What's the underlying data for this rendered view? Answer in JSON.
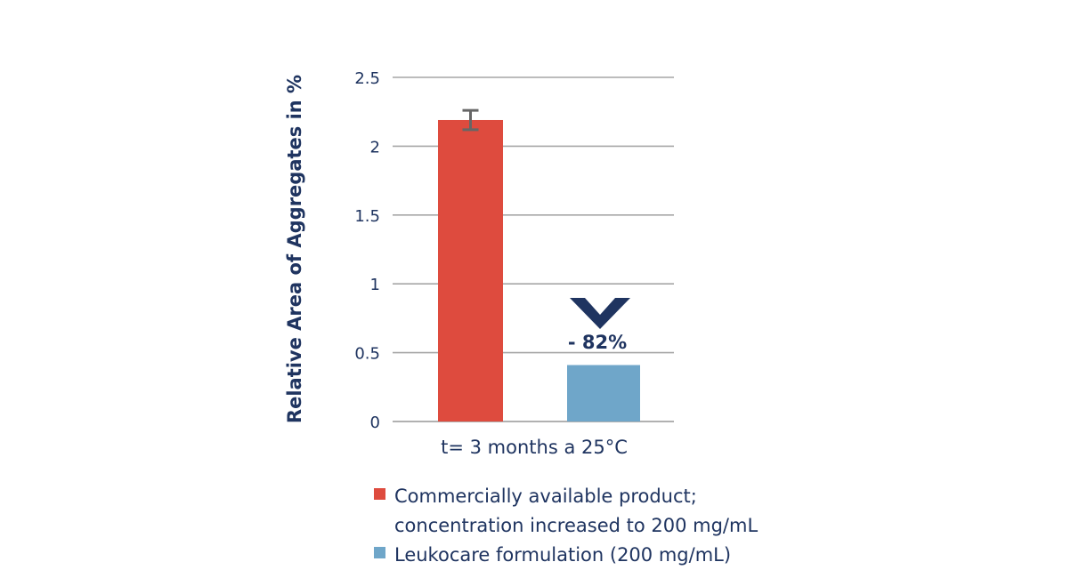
{
  "chart_data": {
    "type": "bar",
    "ylabel": "Relative Area of Aggregates in %",
    "xlabel": "",
    "ylim": [
      0,
      2.5
    ],
    "yticks": [
      0,
      0.5,
      1,
      1.5,
      2,
      2.5
    ],
    "ytick_labels": [
      "0",
      "0.5",
      "1",
      "1.5",
      "2",
      "2.5"
    ],
    "categories": [
      "t= 3 months a 25°C"
    ],
    "series": [
      {
        "name_lines": [
          "Commercially available product;",
          "concentration increased to 200 mg/mL"
        ],
        "values": [
          2.19
        ],
        "error": [
          0.07
        ],
        "color": "#de4b3e"
      },
      {
        "name_lines": [
          "Leukocare formulation (200 mg/mL)"
        ],
        "values": [
          0.41
        ],
        "color": "#6fa6c9"
      }
    ],
    "grid": true,
    "legend_position": "bottom",
    "annotation": {
      "text": "- 82%",
      "icon": "chevron-down-icon",
      "color": "#1f3460"
    },
    "colors": {
      "axis_text": "#1f3460",
      "gridline": "#a6a6a6",
      "error_bar": "#666666"
    }
  }
}
